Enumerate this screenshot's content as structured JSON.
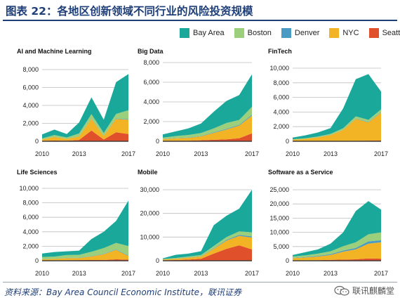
{
  "title": "图表 22：各地区创新领域不同行业的风险投资规模",
  "legend": [
    {
      "name": "Bay Area",
      "color": "#1aa89a"
    },
    {
      "name": "Boston",
      "color": "#9bcf7c"
    },
    {
      "name": "Denver",
      "color": "#4a9bc4"
    },
    {
      "name": "NYC",
      "color": "#f2b324"
    },
    {
      "name": "Seattle",
      "color": "#e0502a"
    }
  ],
  "source": "资料来源：Bay Area Council Economic Institute，联讯证券",
  "watermark": "联讯麒麟堂",
  "chart_data": [
    {
      "type": "area",
      "title": "AI and Machine Learning",
      "x": [
        2010,
        2011,
        2012,
        2013,
        2014,
        2015,
        2016,
        2017
      ],
      "xticks": [
        "2010",
        "2013",
        "2017"
      ],
      "yticks": [
        "0",
        "2,000",
        "4,000",
        "6,000",
        "8,000"
      ],
      "ylim": [
        0,
        8000
      ],
      "stacked": true,
      "series": [
        {
          "name": "Seattle",
          "values": [
            50,
            80,
            60,
            150,
            1200,
            200,
            1000,
            800
          ]
        },
        {
          "name": "NYC",
          "values": [
            150,
            400,
            200,
            400,
            1300,
            400,
            1500,
            1600
          ]
        },
        {
          "name": "Denver",
          "values": [
            10,
            20,
            15,
            20,
            30,
            20,
            50,
            60
          ]
        },
        {
          "name": "Boston",
          "values": [
            100,
            200,
            150,
            300,
            500,
            300,
            500,
            1000
          ]
        },
        {
          "name": "Bay Area",
          "values": [
            450,
            600,
            375,
            1230,
            1870,
            1480,
            3550,
            4040
          ]
        }
      ]
    },
    {
      "type": "area",
      "title": "Big Data",
      "x": [
        2010,
        2011,
        2012,
        2013,
        2014,
        2015,
        2016,
        2017
      ],
      "xticks": [
        "2010",
        "2013",
        "2017"
      ],
      "yticks": [
        "0",
        "2,000",
        "4,000",
        "6,000",
        "8,000"
      ],
      "ylim": [
        0,
        8000
      ],
      "stacked": true,
      "series": [
        {
          "name": "Seattle",
          "values": [
            50,
            50,
            50,
            100,
            150,
            200,
            300,
            800
          ]
        },
        {
          "name": "NYC",
          "values": [
            150,
            250,
            300,
            400,
            700,
            1000,
            1300,
            1800
          ]
        },
        {
          "name": "Denver",
          "values": [
            20,
            30,
            30,
            40,
            50,
            60,
            70,
            100
          ]
        },
        {
          "name": "Boston",
          "values": [
            150,
            200,
            250,
            300,
            400,
            600,
            500,
            800
          ]
        },
        {
          "name": "Bay Area",
          "values": [
            330,
            470,
            670,
            960,
            1700,
            2240,
            2530,
            3300
          ]
        }
      ]
    },
    {
      "type": "area",
      "title": "FinTech",
      "x": [
        2010,
        2011,
        2012,
        2013,
        2014,
        2015,
        2016,
        2017
      ],
      "xticks": [
        "2010",
        "2013",
        "2017"
      ],
      "yticks": [
        "0",
        "2,000",
        "4,000",
        "6,000",
        "8,000",
        "10,000"
      ],
      "ylim": [
        0,
        10000
      ],
      "stacked": true,
      "series": [
        {
          "name": "Seattle",
          "values": [
            20,
            20,
            30,
            40,
            50,
            60,
            80,
            100
          ]
        },
        {
          "name": "NYC",
          "values": [
            200,
            300,
            500,
            800,
            1500,
            3000,
            2500,
            3800
          ]
        },
        {
          "name": "Denver",
          "values": [
            10,
            10,
            20,
            20,
            30,
            40,
            50,
            60
          ]
        },
        {
          "name": "Boston",
          "values": [
            50,
            80,
            100,
            150,
            200,
            300,
            300,
            400
          ]
        },
        {
          "name": "Bay Area",
          "values": [
            220,
            390,
            550,
            790,
            2720,
            5100,
            6270,
            2440
          ]
        }
      ]
    },
    {
      "type": "area",
      "title": "Life Sciences",
      "x": [
        2010,
        2011,
        2012,
        2013,
        2014,
        2015,
        2016,
        2017
      ],
      "xticks": [
        "2010",
        "2013",
        "2017"
      ],
      "yticks": [
        "0",
        "2,000",
        "4,000",
        "6,000",
        "8,000",
        "10,000"
      ],
      "ylim": [
        0,
        10000
      ],
      "stacked": true,
      "series": [
        {
          "name": "Seattle",
          "values": [
            50,
            50,
            60,
            80,
            100,
            100,
            200,
            150
          ]
        },
        {
          "name": "NYC",
          "values": [
            150,
            200,
            300,
            300,
            500,
            800,
            1300,
            500
          ]
        },
        {
          "name": "Denver",
          "values": [
            20,
            20,
            30,
            30,
            40,
            50,
            60,
            80
          ]
        },
        {
          "name": "Boston",
          "values": [
            300,
            300,
            400,
            400,
            600,
            800,
            900,
            1300
          ]
        },
        {
          "name": "Bay Area",
          "values": [
            480,
            630,
            510,
            590,
            1760,
            2250,
            3040,
            6270
          ]
        }
      ]
    },
    {
      "type": "area",
      "title": "Mobile",
      "x": [
        2010,
        2011,
        2012,
        2013,
        2014,
        2015,
        2016,
        2017
      ],
      "xticks": [
        "2010",
        "2013",
        "2017"
      ],
      "yticks": [
        "0",
        "10,000",
        "20,000",
        "30,000"
      ],
      "ylim": [
        0,
        30000
      ],
      "stacked": true,
      "series": [
        {
          "name": "Seattle",
          "values": [
            200,
            300,
            500,
            800,
            3000,
            5000,
            6500,
            4800
          ]
        },
        {
          "name": "NYC",
          "values": [
            300,
            500,
            800,
            1000,
            2000,
            3500,
            4000,
            5000
          ]
        },
        {
          "name": "Denver",
          "values": [
            50,
            50,
            100,
            100,
            200,
            300,
            400,
            500
          ]
        },
        {
          "name": "Boston",
          "values": [
            200,
            300,
            400,
            500,
            1000,
            1200,
            1500,
            1700
          ]
        },
        {
          "name": "Bay Area",
          "values": [
            250,
            1350,
            1200,
            1600,
            8800,
            9000,
            9600,
            18000
          ]
        }
      ]
    },
    {
      "type": "area",
      "title": "Software as a Service",
      "x": [
        2010,
        2011,
        2012,
        2013,
        2014,
        2015,
        2016,
        2017
      ],
      "xticks": [
        "2010",
        "2013",
        "2017"
      ],
      "yticks": [
        "0",
        "5,000",
        "10,000",
        "15,000",
        "20,000",
        "25,000"
      ],
      "ylim": [
        0,
        25000
      ],
      "stacked": true,
      "series": [
        {
          "name": "Seattle",
          "values": [
            100,
            150,
            200,
            300,
            400,
            500,
            800,
            700
          ]
        },
        {
          "name": "NYC",
          "values": [
            800,
            1000,
            1300,
            1700,
            2800,
            3500,
            5200,
            5800
          ]
        },
        {
          "name": "Denver",
          "values": [
            100,
            150,
            200,
            300,
            400,
            500,
            800,
            700
          ]
        },
        {
          "name": "Boston",
          "values": [
            500,
            600,
            800,
            1000,
            1500,
            2000,
            2500,
            2800
          ]
        },
        {
          "name": "Bay Area",
          "values": [
            500,
            1100,
            1500,
            2700,
            4900,
            11000,
            11700,
            8000
          ]
        }
      ]
    }
  ]
}
